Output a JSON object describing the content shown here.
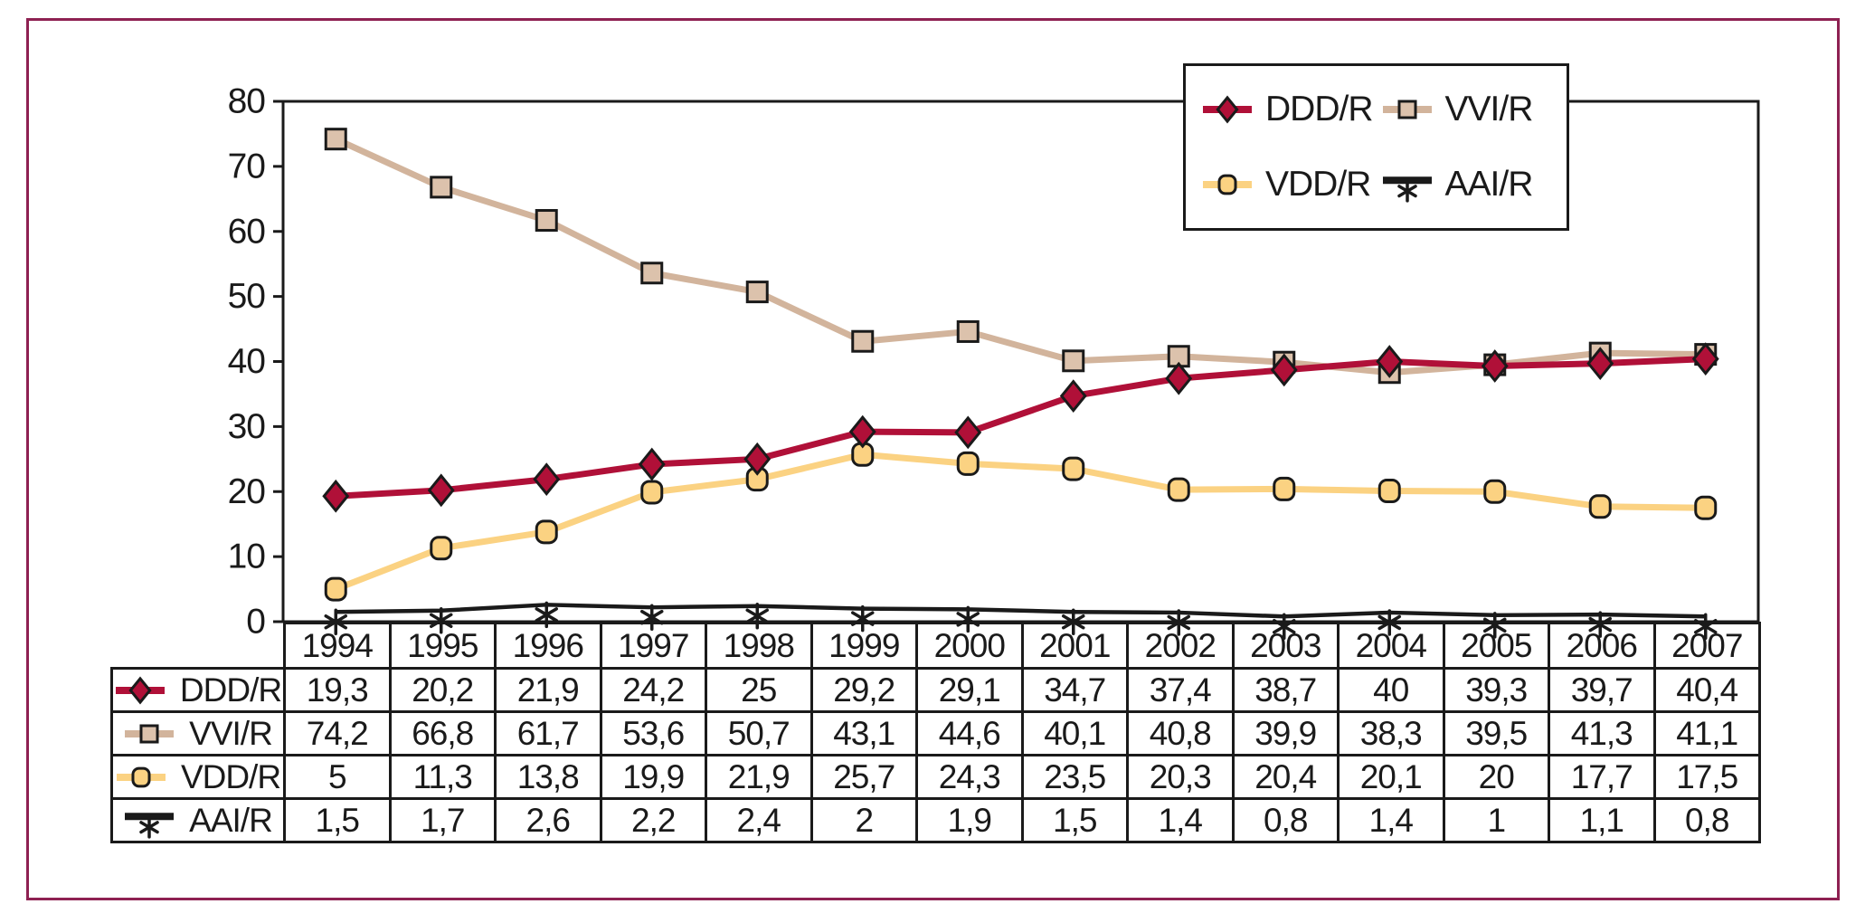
{
  "page": {
    "frame_border_color": "#8E2152",
    "background_color": "#FFFFFF",
    "axis_color": "#1A1A1A",
    "text_color": "#1A1A1A"
  },
  "chart_data": {
    "type": "line",
    "title": "",
    "xlabel": "",
    "ylabel": "",
    "categories": [
      "1994",
      "1995",
      "1996",
      "1997",
      "1998",
      "1999",
      "2000",
      "2001",
      "2002",
      "2003",
      "2004",
      "2005",
      "2006",
      "2007"
    ],
    "series": [
      {
        "name": "DDD/R",
        "color": "#B01038",
        "marker": "diamond",
        "marker_fill": "#B01038",
        "values": [
          19.3,
          20.2,
          21.9,
          24.2,
          25,
          29.2,
          29.1,
          34.7,
          37.4,
          38.7,
          40,
          39.3,
          39.7,
          40.4
        ]
      },
      {
        "name": "VVI/R",
        "color": "#D2B49C",
        "marker": "square",
        "marker_fill": "#DCC2AC",
        "values": [
          74.2,
          66.8,
          61.7,
          53.6,
          50.7,
          43.1,
          44.6,
          40.1,
          40.8,
          39.9,
          38.3,
          39.5,
          41.3,
          41.1
        ]
      },
      {
        "name": "VDD/R",
        "color": "#FBD282",
        "marker": "circle",
        "marker_fill": "#FBD282",
        "values": [
          5,
          11.3,
          13.8,
          19.9,
          21.9,
          25.7,
          24.3,
          23.5,
          20.3,
          20.4,
          20.1,
          20,
          17.7,
          17.5
        ]
      },
      {
        "name": "AAI/R",
        "color": "#1A1A1A",
        "marker": "asterisk",
        "marker_fill": "#1A1A1A",
        "values": [
          1.5,
          1.7,
          2.6,
          2.2,
          2.4,
          2,
          1.9,
          1.5,
          1.4,
          0.8,
          1.4,
          1,
          1.1,
          0.8
        ]
      }
    ],
    "ylim": [
      0,
      80
    ],
    "yticks": [
      0,
      10,
      20,
      30,
      40,
      50,
      60,
      70,
      80
    ],
    "grid": false,
    "legend_position": "top-right",
    "value_table_decimal_separator": ","
  }
}
